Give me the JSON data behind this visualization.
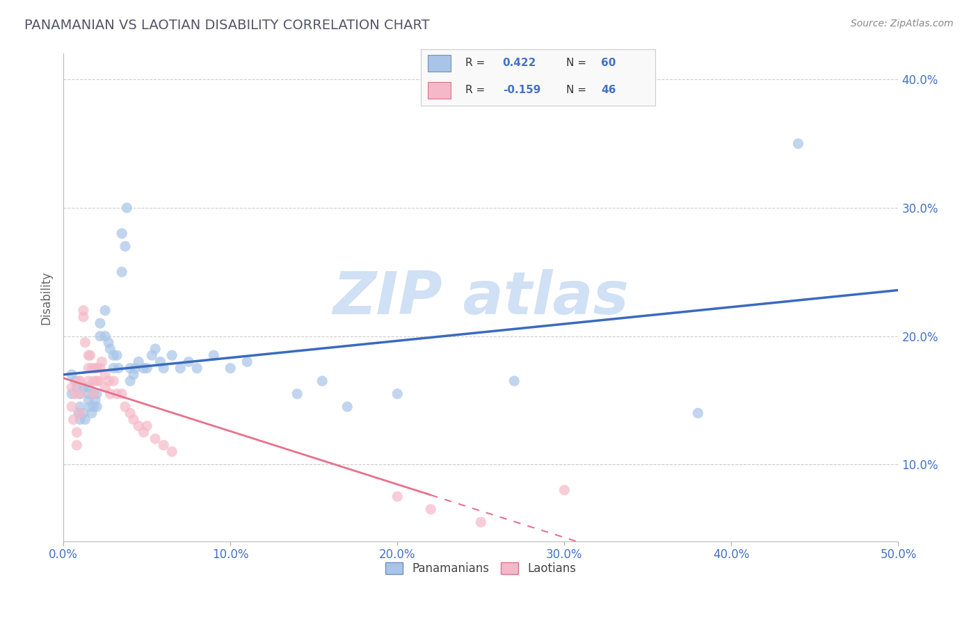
{
  "title": "PANAMANIAN VS LAOTIAN DISABILITY CORRELATION CHART",
  "source": "Source: ZipAtlas.com",
  "xlim": [
    0.0,
    0.5
  ],
  "ylim": [
    0.04,
    0.42
  ],
  "blue_R": 0.422,
  "blue_N": 60,
  "pink_R": -0.159,
  "pink_N": 46,
  "blue_color": "#a8c4e8",
  "pink_color": "#f5b8c8",
  "blue_line_color": "#3a6abf",
  "pink_line_color": "#e8708a",
  "ylabel": "Disability",
  "legend_blue_label": "Panamanians",
  "legend_pink_label": "Laotians",
  "yticks": [
    0.1,
    0.2,
    0.3,
    0.4
  ],
  "xticks": [
    0.0,
    0.1,
    0.2,
    0.3,
    0.4,
    0.5
  ],
  "watermark_color": "#d0e0f5",
  "grid_color": "#cccccc",
  "title_color": "#555566",
  "tick_color": "#4472c4",
  "blue_x": [
    0.005,
    0.005,
    0.007,
    0.008,
    0.009,
    0.01,
    0.01,
    0.01,
    0.012,
    0.012,
    0.013,
    0.015,
    0.015,
    0.015,
    0.016,
    0.017,
    0.018,
    0.018,
    0.019,
    0.02,
    0.02,
    0.022,
    0.022,
    0.025,
    0.025,
    0.027,
    0.028,
    0.03,
    0.03,
    0.032,
    0.033,
    0.035,
    0.035,
    0.037,
    0.038,
    0.04,
    0.04,
    0.042,
    0.043,
    0.045,
    0.048,
    0.05,
    0.053,
    0.055,
    0.058,
    0.06,
    0.065,
    0.07,
    0.075,
    0.08,
    0.09,
    0.1,
    0.11,
    0.14,
    0.155,
    0.17,
    0.2,
    0.27,
    0.38,
    0.44
  ],
  "blue_y": [
    0.155,
    0.17,
    0.165,
    0.16,
    0.14,
    0.155,
    0.145,
    0.135,
    0.16,
    0.14,
    0.135,
    0.16,
    0.155,
    0.15,
    0.145,
    0.14,
    0.155,
    0.145,
    0.15,
    0.155,
    0.145,
    0.21,
    0.2,
    0.22,
    0.2,
    0.195,
    0.19,
    0.185,
    0.175,
    0.185,
    0.175,
    0.25,
    0.28,
    0.27,
    0.3,
    0.175,
    0.165,
    0.17,
    0.175,
    0.18,
    0.175,
    0.175,
    0.185,
    0.19,
    0.18,
    0.175,
    0.185,
    0.175,
    0.18,
    0.175,
    0.185,
    0.175,
    0.18,
    0.155,
    0.165,
    0.145,
    0.155,
    0.165,
    0.14,
    0.35
  ],
  "pink_x": [
    0.005,
    0.005,
    0.006,
    0.007,
    0.008,
    0.008,
    0.009,
    0.01,
    0.01,
    0.01,
    0.012,
    0.012,
    0.013,
    0.015,
    0.015,
    0.015,
    0.016,
    0.017,
    0.018,
    0.018,
    0.019,
    0.02,
    0.02,
    0.021,
    0.022,
    0.023,
    0.025,
    0.025,
    0.027,
    0.028,
    0.03,
    0.032,
    0.035,
    0.037,
    0.04,
    0.042,
    0.045,
    0.048,
    0.05,
    0.055,
    0.06,
    0.065,
    0.2,
    0.22,
    0.25,
    0.3
  ],
  "pink_y": [
    0.16,
    0.145,
    0.135,
    0.155,
    0.125,
    0.115,
    0.165,
    0.165,
    0.155,
    0.14,
    0.22,
    0.215,
    0.195,
    0.185,
    0.175,
    0.165,
    0.185,
    0.175,
    0.165,
    0.155,
    0.175,
    0.175,
    0.165,
    0.165,
    0.175,
    0.18,
    0.16,
    0.17,
    0.165,
    0.155,
    0.165,
    0.155,
    0.155,
    0.145,
    0.14,
    0.135,
    0.13,
    0.125,
    0.13,
    0.12,
    0.115,
    0.11,
    0.075,
    0.065,
    0.055,
    0.08
  ]
}
